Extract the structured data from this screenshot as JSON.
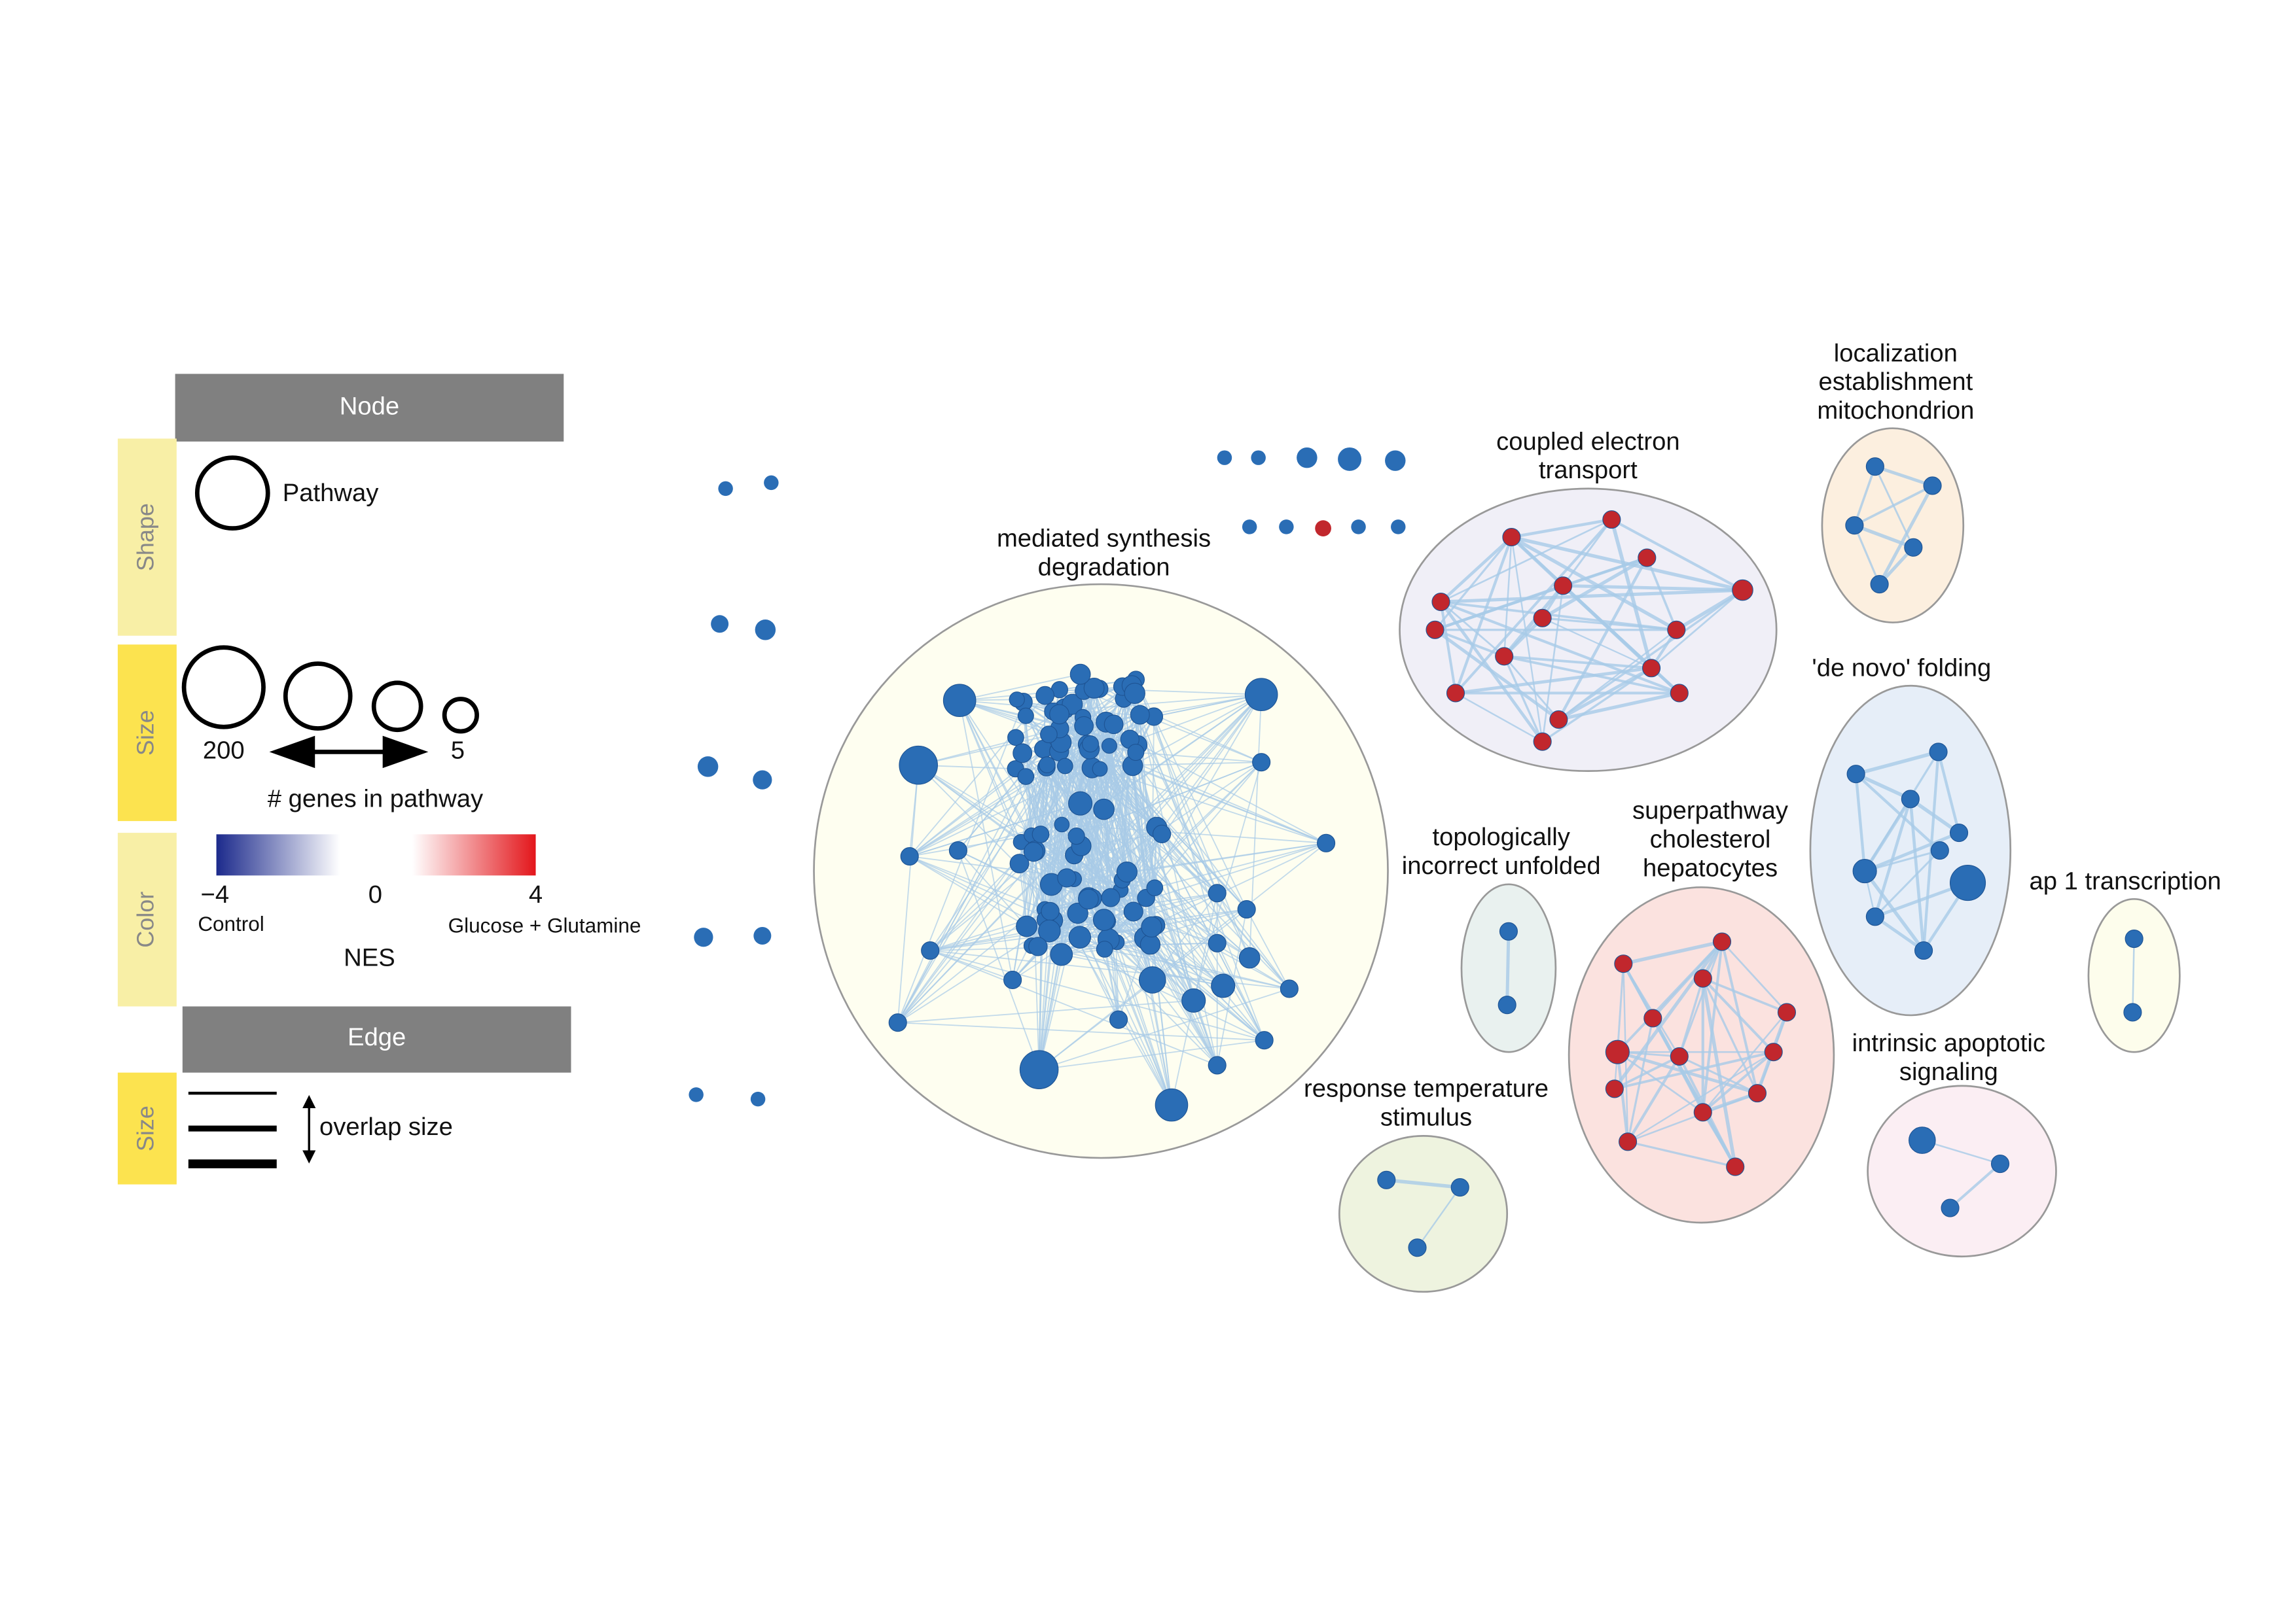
{
  "legend": {
    "node_header": "Node",
    "shape_label": "Shape",
    "pathway": "Pathway",
    "size_label": "Size",
    "size_max": "200",
    "size_min": "5",
    "size_caption": "# genes in pathway",
    "color_label": "Color",
    "nes_min": "−4",
    "nes_mid": "0",
    "nes_max": "4",
    "control": "Control",
    "treatment": "Glucose + Glutamine",
    "nes": "NES",
    "edge_header": "Edge",
    "edge_size_label": "Size",
    "overlap": "overlap size"
  },
  "clusters": [
    {
      "lines": [
        "mediated synthesis",
        "degradation"
      ]
    },
    {
      "lines": [
        "coupled electron",
        "transport"
      ]
    },
    {
      "lines": [
        "localization",
        "establishment",
        "mitochondrion"
      ]
    },
    {
      "lines": [
        "'de novo' folding"
      ]
    },
    {
      "lines": [
        "topologically",
        "incorrect unfolded"
      ]
    },
    {
      "lines": [
        "superpathway",
        "cholesterol",
        "hepatocytes"
      ]
    },
    {
      "lines": [
        "ap 1 transcription"
      ]
    },
    {
      "lines": [
        "intrinsic apoptotic",
        "signaling"
      ]
    },
    {
      "lines": [
        "response temperature",
        "stimulus"
      ]
    }
  ]
}
